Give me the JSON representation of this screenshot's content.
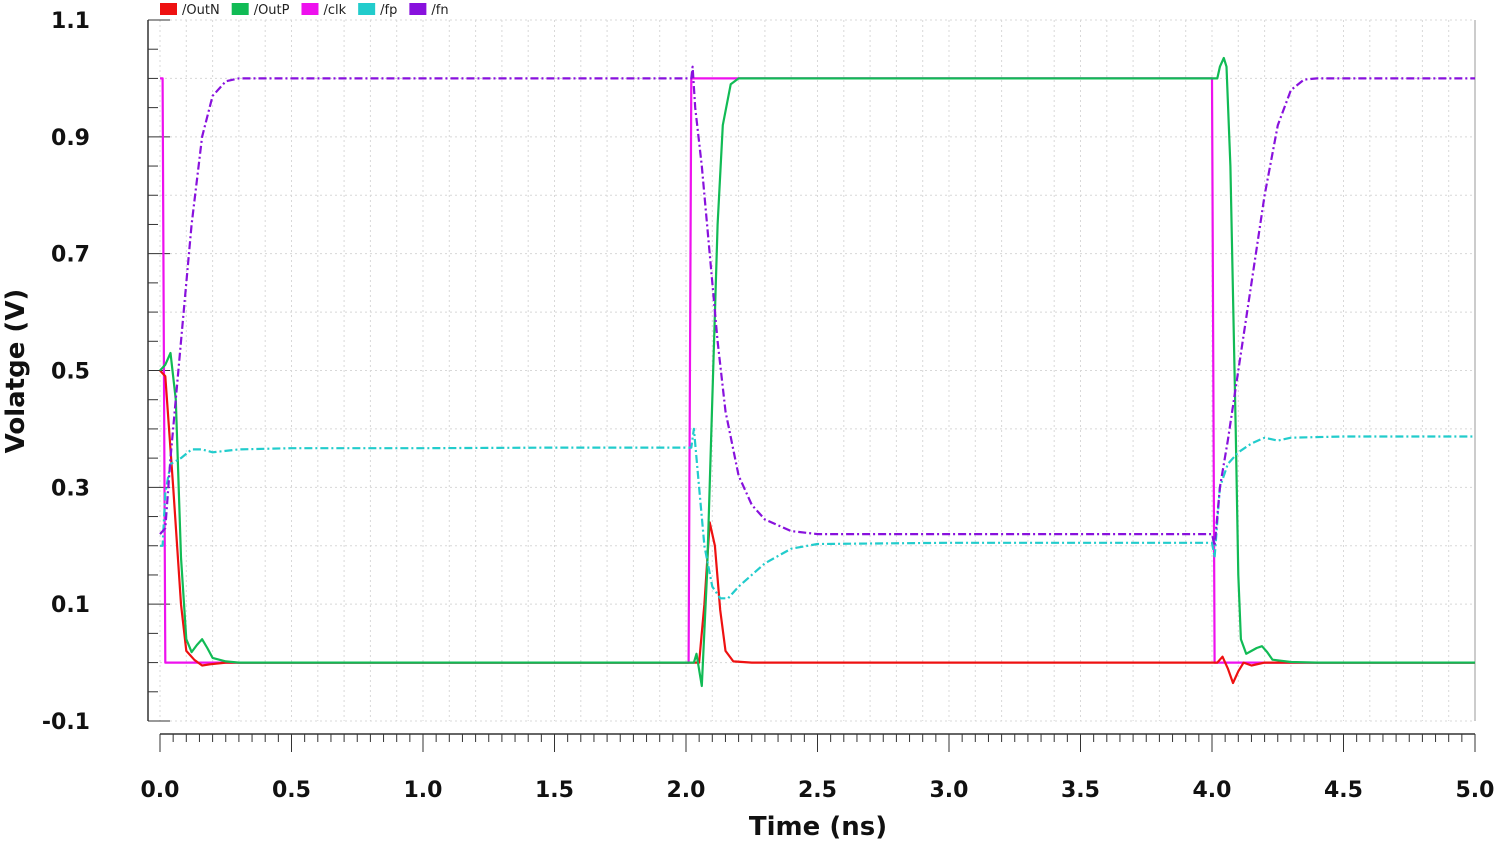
{
  "chart_data": {
    "type": "line",
    "title": "",
    "xlabel": "Time (ns)",
    "ylabel": "Volatge (V)",
    "xlim": [
      0.0,
      5.0
    ],
    "ylim": [
      -0.1,
      1.1
    ],
    "x_ticks": [
      "0.0",
      "0.5",
      "1.0",
      "1.5",
      "2.0",
      "2.5",
      "3.0",
      "3.5",
      "4.0",
      "4.5",
      "5.0"
    ],
    "y_ticks": [
      "-0.1",
      "0.1",
      "0.3",
      "0.5",
      "0.7",
      "0.9",
      "1.1"
    ],
    "grid": true,
    "legend_position": "top-left",
    "series": [
      {
        "name": "/OutN",
        "color": "#ee1111",
        "style": "solid",
        "points": [
          [
            0.0,
            0.5
          ],
          [
            0.02,
            0.49
          ],
          [
            0.05,
            0.3
          ],
          [
            0.08,
            0.1
          ],
          [
            0.1,
            0.02
          ],
          [
            0.13,
            0.005
          ],
          [
            0.16,
            -0.005
          ],
          [
            0.19,
            -0.003
          ],
          [
            0.25,
            0.0
          ],
          [
            2.0,
            0.0
          ],
          [
            2.03,
            0.0
          ],
          [
            2.05,
            0.0
          ],
          [
            2.07,
            0.1
          ],
          [
            2.09,
            0.24
          ],
          [
            2.11,
            0.2
          ],
          [
            2.13,
            0.09
          ],
          [
            2.15,
            0.02
          ],
          [
            2.18,
            0.002
          ],
          [
            2.25,
            0.0
          ],
          [
            4.0,
            0.0
          ],
          [
            4.02,
            0.0
          ],
          [
            4.04,
            0.01
          ],
          [
            4.06,
            -0.01
          ],
          [
            4.08,
            -0.035
          ],
          [
            4.1,
            -0.015
          ],
          [
            4.12,
            0.0
          ],
          [
            4.15,
            -0.005
          ],
          [
            4.2,
            0.0
          ],
          [
            5.0,
            0.0
          ]
        ]
      },
      {
        "name": "/OutP",
        "color": "#11bb55",
        "style": "solid",
        "points": [
          [
            0.0,
            0.5
          ],
          [
            0.02,
            0.51
          ],
          [
            0.04,
            0.53
          ],
          [
            0.06,
            0.45
          ],
          [
            0.08,
            0.18
          ],
          [
            0.1,
            0.04
          ],
          [
            0.12,
            0.018
          ],
          [
            0.14,
            0.03
          ],
          [
            0.16,
            0.04
          ],
          [
            0.18,
            0.025
          ],
          [
            0.2,
            0.008
          ],
          [
            0.25,
            0.002
          ],
          [
            0.3,
            0.0
          ],
          [
            2.0,
            0.0
          ],
          [
            2.03,
            0.0
          ],
          [
            2.04,
            0.015
          ],
          [
            2.06,
            -0.04
          ],
          [
            2.08,
            0.15
          ],
          [
            2.1,
            0.45
          ],
          [
            2.12,
            0.75
          ],
          [
            2.14,
            0.92
          ],
          [
            2.17,
            0.99
          ],
          [
            2.2,
            1.0
          ],
          [
            4.0,
            1.0
          ],
          [
            4.02,
            1.0
          ],
          [
            4.03,
            1.02
          ],
          [
            4.045,
            1.035
          ],
          [
            4.055,
            1.02
          ],
          [
            4.07,
            0.85
          ],
          [
            4.09,
            0.4
          ],
          [
            4.1,
            0.15
          ],
          [
            4.11,
            0.04
          ],
          [
            4.13,
            0.015
          ],
          [
            4.15,
            0.02
          ],
          [
            4.17,
            0.025
          ],
          [
            4.19,
            0.028
          ],
          [
            4.21,
            0.018
          ],
          [
            4.23,
            0.005
          ],
          [
            4.3,
            0.001
          ],
          [
            4.4,
            0.0
          ],
          [
            5.0,
            0.0
          ]
        ]
      },
      {
        "name": "/clk",
        "color": "#ee11ee",
        "style": "solid",
        "points": [
          [
            0.0,
            1.0
          ],
          [
            0.01,
            1.0
          ],
          [
            0.02,
            0.0
          ],
          [
            2.01,
            0.0
          ],
          [
            2.02,
            1.0
          ],
          [
            4.0,
            1.0
          ],
          [
            4.01,
            0.0
          ],
          [
            5.0,
            0.0
          ]
        ]
      },
      {
        "name": "/fp",
        "color": "#22cccc",
        "style": "dashdot",
        "points": [
          [
            0.0,
            0.2
          ],
          [
            0.01,
            0.2
          ],
          [
            0.02,
            0.29
          ],
          [
            0.04,
            0.34
          ],
          [
            0.08,
            0.35
          ],
          [
            0.12,
            0.365
          ],
          [
            0.16,
            0.365
          ],
          [
            0.2,
            0.36
          ],
          [
            0.3,
            0.365
          ],
          [
            0.5,
            0.367
          ],
          [
            1.0,
            0.367
          ],
          [
            1.5,
            0.368
          ],
          [
            2.02,
            0.368
          ],
          [
            2.03,
            0.4
          ],
          [
            2.05,
            0.3
          ],
          [
            2.07,
            0.2
          ],
          [
            2.1,
            0.13
          ],
          [
            2.13,
            0.11
          ],
          [
            2.16,
            0.11
          ],
          [
            2.2,
            0.13
          ],
          [
            2.3,
            0.17
          ],
          [
            2.4,
            0.195
          ],
          [
            2.5,
            0.203
          ],
          [
            3.0,
            0.205
          ],
          [
            4.0,
            0.205
          ],
          [
            4.01,
            0.18
          ],
          [
            4.03,
            0.3
          ],
          [
            4.06,
            0.34
          ],
          [
            4.1,
            0.36
          ],
          [
            4.15,
            0.375
          ],
          [
            4.2,
            0.385
          ],
          [
            4.25,
            0.38
          ],
          [
            4.3,
            0.385
          ],
          [
            4.5,
            0.387
          ],
          [
            5.0,
            0.387
          ]
        ]
      },
      {
        "name": "/fn",
        "color": "#8811dd",
        "style": "dashdot",
        "points": [
          [
            0.0,
            0.22
          ],
          [
            0.02,
            0.23
          ],
          [
            0.04,
            0.35
          ],
          [
            0.08,
            0.55
          ],
          [
            0.12,
            0.75
          ],
          [
            0.16,
            0.9
          ],
          [
            0.2,
            0.97
          ],
          [
            0.25,
            0.995
          ],
          [
            0.3,
            1.0
          ],
          [
            2.0,
            1.0
          ],
          [
            2.02,
            1.0
          ],
          [
            2.025,
            1.02
          ],
          [
            2.035,
            0.95
          ],
          [
            2.06,
            0.85
          ],
          [
            2.09,
            0.7
          ],
          [
            2.12,
            0.55
          ],
          [
            2.15,
            0.43
          ],
          [
            2.2,
            0.32
          ],
          [
            2.25,
            0.27
          ],
          [
            2.3,
            0.245
          ],
          [
            2.4,
            0.225
          ],
          [
            2.5,
            0.22
          ],
          [
            4.0,
            0.22
          ],
          [
            4.01,
            0.2
          ],
          [
            4.03,
            0.3
          ],
          [
            4.06,
            0.38
          ],
          [
            4.1,
            0.5
          ],
          [
            4.15,
            0.65
          ],
          [
            4.2,
            0.8
          ],
          [
            4.25,
            0.92
          ],
          [
            4.3,
            0.98
          ],
          [
            4.35,
            0.998
          ],
          [
            4.4,
            1.0
          ],
          [
            5.0,
            1.0
          ]
        ]
      }
    ]
  }
}
